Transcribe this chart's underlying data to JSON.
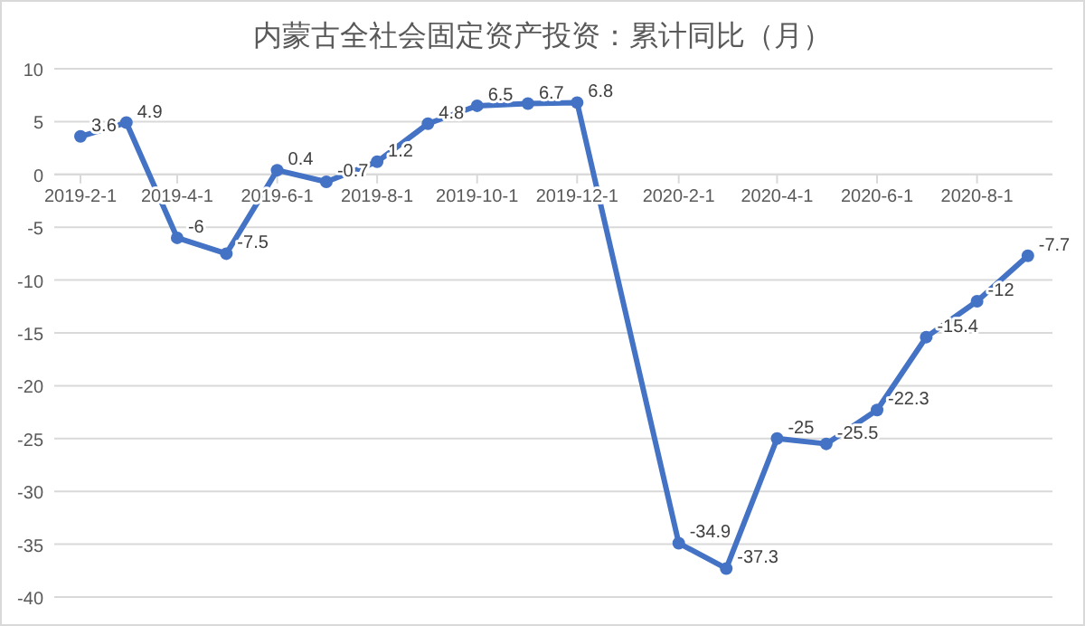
{
  "chart_data": {
    "type": "line",
    "title": "内蒙古全社会固定资产投资：累计同比（月）",
    "x": [
      "2019-02",
      "2019-03",
      "2019-04",
      "2019-05",
      "2019-06",
      "2019-07",
      "2019-08",
      "2019-09",
      "2019-10",
      "2019-11",
      "2019-12",
      "2020-02",
      "2020-03",
      "2020-04",
      "2020-05",
      "2020-06",
      "2020-07",
      "2020-08",
      "2020-09"
    ],
    "series": [
      {
        "color": "#4472c4",
        "values": [
          3.6,
          4.9,
          -6,
          -7.5,
          0.4,
          -0.7,
          1.2,
          4.8,
          6.5,
          6.7,
          6.8,
          -34.9,
          -37.3,
          -25,
          -25.5,
          -22.3,
          -15.4,
          -12,
          -7.7
        ]
      }
    ],
    "xlim": [
      "2019-01-16",
      "2020-09-16"
    ],
    "xticks": [
      {
        "value": "2019-02-01",
        "label": "2019-2-1"
      },
      {
        "value": "2019-04-01",
        "label": "2019-4-1"
      },
      {
        "value": "2019-06-01",
        "label": "2019-6-1"
      },
      {
        "value": "2019-08-01",
        "label": "2019-8-1"
      },
      {
        "value": "2019-10-01",
        "label": "2019-10-1"
      },
      {
        "value": "2019-12-01",
        "label": "2019-12-1"
      },
      {
        "value": "2020-02-01",
        "label": "2020-2-1"
      },
      {
        "value": "2020-04-01",
        "label": "2020-4-1"
      },
      {
        "value": "2020-06-01",
        "label": "2020-6-1"
      },
      {
        "value": "2020-08-01",
        "label": "2020-8-1"
      }
    ],
    "ylim": [
      -40,
      10
    ],
    "yticks": [
      -40,
      -35,
      -30,
      -25,
      -20,
      -15,
      -10,
      -5,
      0,
      5,
      10
    ],
    "grid": "y",
    "marker": "circle",
    "line_style": "solid",
    "data_labels": true
  }
}
